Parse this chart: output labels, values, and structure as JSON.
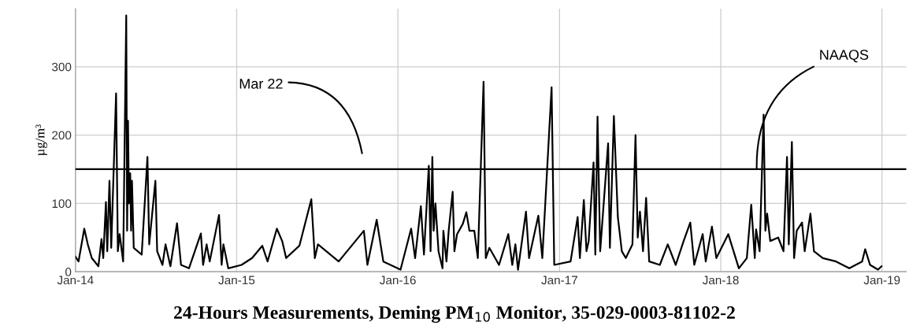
{
  "chart_data": {
    "type": "line",
    "title": "24-Hours Measurements, Deming PM$_{10}$ Monitor, 35-029-0003-81102-2",
    "ylabel": "µg/m³",
    "annotations": [
      "Mar 22"
    ],
    "xlim": [
      "2014-01-01",
      "2019-02-25"
    ],
    "xticks": [
      {
        "value": "2014-01-01",
        "label": "Jan-14"
      },
      {
        "value": "2015-01-01",
        "label": "Jan-15"
      },
      {
        "value": "2016-01-01",
        "label": "Jan-16"
      },
      {
        "value": "2017-01-01",
        "label": "Jan-17"
      },
      {
        "value": "2018-01-01",
        "label": "Jan-18"
      },
      {
        "value": "2019-01-01",
        "label": "Jan-19"
      }
    ],
    "ylim": [
      0,
      385
    ],
    "yticks": [
      0,
      100,
      200,
      300
    ],
    "grid": true,
    "line_style": "solid",
    "ref_lines": [
      {
        "axis": "y",
        "value": 150,
        "label": "NAAQS",
        "color": "#000000"
      }
    ],
    "series": [
      {
        "color": "#000000",
        "x": [
          "2014-01-01",
          "2014-01-08",
          "2014-01-21",
          "2014-01-29",
          "2014-02-07",
          "2014-02-22",
          "2014-03-01",
          "2014-03-05",
          "2014-03-11",
          "2014-03-14",
          "2014-03-19",
          "2014-03-23",
          "2014-04-03",
          "2014-04-07",
          "2014-04-11",
          "2014-04-19",
          "2014-04-26",
          "2014-04-28",
          "2014-04-30",
          "2014-05-02",
          "2014-05-05",
          "2014-05-07",
          "2014-05-09",
          "2014-05-13",
          "2014-05-31",
          "2014-06-13",
          "2014-06-17",
          "2014-07-01",
          "2014-07-05",
          "2014-07-17",
          "2014-07-24",
          "2014-08-04",
          "2014-08-19",
          "2014-08-28",
          "2014-09-15",
          "2014-10-12",
          "2014-10-17",
          "2014-10-25",
          "2014-11-01",
          "2014-11-22",
          "2014-11-28",
          "2014-12-02",
          "2014-12-13",
          "2015-01-12",
          "2015-02-05",
          "2015-02-28",
          "2015-03-12",
          "2015-04-02",
          "2015-04-14",
          "2015-04-23",
          "2015-05-23",
          "2015-06-19",
          "2015-06-27",
          "2015-07-04",
          "2015-08-20",
          "2015-10-16",
          "2015-10-24",
          "2015-11-14",
          "2015-11-29",
          "2016-01-07",
          "2016-01-31",
          "2016-02-09",
          "2016-02-22",
          "2016-02-29",
          "2016-03-11",
          "2016-03-15",
          "2016-03-19",
          "2016-03-22",
          "2016-03-26",
          "2016-04-02",
          "2016-04-11",
          "2016-04-13",
          "2016-04-20",
          "2016-04-25",
          "2016-05-04",
          "2016-05-08",
          "2016-05-14",
          "2016-05-27",
          "2016-06-04",
          "2016-06-11",
          "2016-06-22",
          "2016-06-30",
          "2016-07-13",
          "2016-07-18",
          "2016-07-26",
          "2016-08-17",
          "2016-09-07",
          "2016-09-16",
          "2016-09-23",
          "2016-09-29",
          "2016-10-17",
          "2016-10-24",
          "2016-11-14",
          "2016-11-23",
          "2016-12-14",
          "2016-12-20",
          "2017-01-26",
          "2017-02-11",
          "2017-02-16",
          "2017-02-25",
          "2017-03-03",
          "2017-03-08",
          "2017-03-19",
          "2017-03-23",
          "2017-03-28",
          "2017-04-03",
          "2017-04-21",
          "2017-04-25",
          "2017-05-04",
          "2017-05-13",
          "2017-05-22",
          "2017-05-31",
          "2017-06-15",
          "2017-06-22",
          "2017-06-27",
          "2017-07-02",
          "2017-07-09",
          "2017-07-16",
          "2017-07-23",
          "2017-08-16",
          "2017-09-03",
          "2017-09-21",
          "2017-10-09",
          "2017-10-24",
          "2017-11-02",
          "2017-11-21",
          "2017-11-28",
          "2017-12-12",
          "2017-12-22",
          "2018-01-18",
          "2018-01-30",
          "2018-02-11",
          "2018-03-01",
          "2018-03-11",
          "2018-03-19",
          "2018-03-22",
          "2018-03-30",
          "2018-04-08",
          "2018-04-12",
          "2018-04-16",
          "2018-04-23",
          "2018-05-11",
          "2018-05-23",
          "2018-05-31",
          "2018-06-04",
          "2018-06-11",
          "2018-06-16",
          "2018-06-22",
          "2018-07-04",
          "2018-07-10",
          "2018-07-23",
          "2018-07-31",
          "2018-08-20",
          "2018-09-19",
          "2018-10-19",
          "2018-11-17",
          "2018-11-24",
          "2018-12-05",
          "2018-12-23",
          "2018-12-31"
        ],
        "values": [
          22,
          15,
          63,
          40,
          20,
          8,
          48,
          20,
          102,
          30,
          133,
          35,
          261,
          30,
          55,
          15,
          375,
          60,
          221,
          100,
          144,
          60,
          133,
          35,
          25,
          168,
          40,
          133,
          30,
          10,
          40,
          8,
          71,
          10,
          5,
          56,
          10,
          40,
          15,
          83,
          10,
          40,
          5,
          10,
          20,
          38,
          15,
          63,
          45,
          20,
          38,
          106,
          20,
          40,
          15,
          60,
          10,
          76,
          15,
          3,
          63,
          20,
          96,
          25,
          155,
          30,
          168,
          60,
          100,
          30,
          5,
          60,
          15,
          60,
          117,
          30,
          55,
          70,
          87,
          60,
          60,
          20,
          278,
          20,
          35,
          10,
          55,
          10,
          40,
          3,
          88,
          20,
          82,
          20,
          270,
          10,
          15,
          80,
          20,
          105,
          30,
          45,
          160,
          25,
          227,
          30,
          188,
          35,
          228,
          80,
          30,
          20,
          40,
          200,
          50,
          88,
          30,
          108,
          15,
          10,
          40,
          10,
          45,
          72,
          10,
          55,
          15,
          66,
          20,
          55,
          30,
          5,
          20,
          98,
          20,
          62,
          30,
          230,
          60,
          85,
          45,
          50,
          30,
          168,
          40,
          190,
          20,
          60,
          72,
          30,
          85,
          30,
          20,
          15,
          5,
          15,
          33,
          10,
          3,
          8
        ]
      }
    ]
  }
}
